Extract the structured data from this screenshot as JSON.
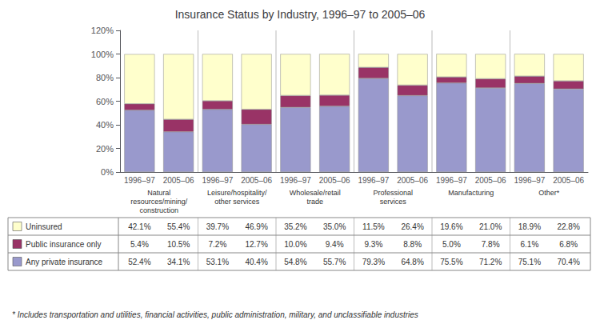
{
  "chart_data": {
    "type": "bar",
    "title": "Insurance Status by Industry, 1996–97 to 2005–06",
    "categories": [
      "1996–97",
      "2005–06",
      "1996–97",
      "2005–06",
      "1996–97",
      "2005–06",
      "1996–97",
      "2005–06",
      "1996–97",
      "2005–06",
      "1996–97",
      "2005–06"
    ],
    "groups": [
      "Natural\nresources/mining/\nconstruction",
      "Leisure/hospitality/\nother services",
      "Wholesale/retail\ntrade",
      "Professional\nservices",
      "Manufacturing",
      "Other*"
    ],
    "series": [
      {
        "name": "Any private insurance",
        "color": "#9999cc",
        "values": [
          52.4,
          34.1,
          53.1,
          40.4,
          54.8,
          55.7,
          79.3,
          64.8,
          75.5,
          71.2,
          75.1,
          70.4
        ],
        "value_labels": [
          "52.4%",
          "34.1%",
          "53.1%",
          "40.4%",
          "54.8%",
          "55.7%",
          "79.3%",
          "64.8%",
          "75.5%",
          "71.2%",
          "75.1%",
          "70.4%"
        ]
      },
      {
        "name": "Public insurance only",
        "color": "#993366",
        "values": [
          5.4,
          10.5,
          7.2,
          12.7,
          10.0,
          9.4,
          9.3,
          8.8,
          5.0,
          7.8,
          6.1,
          6.8
        ],
        "value_labels": [
          "5.4%",
          "10.5%",
          "7.2%",
          "12.7%",
          "10.0%",
          "9.4%",
          "9.3%",
          "8.8%",
          "5.0%",
          "7.8%",
          "6.1%",
          "6.8%"
        ]
      },
      {
        "name": "Uninsured",
        "color": "#ffffcc",
        "values": [
          42.1,
          55.4,
          39.7,
          46.9,
          35.2,
          35.0,
          11.5,
          26.4,
          19.6,
          21.0,
          18.9,
          22.8
        ],
        "value_labels": [
          "42.1%",
          "55.4%",
          "39.7%",
          "46.9%",
          "35.2%",
          "35.0%",
          "11.5%",
          "26.4%",
          "19.6%",
          "21.0%",
          "18.9%",
          "22.8%"
        ]
      }
    ],
    "stacked": true,
    "ylim": [
      0,
      120
    ],
    "yticks": [
      {
        "value": 0,
        "label": "0%"
      },
      {
        "value": 20,
        "label": "20%"
      },
      {
        "value": 40,
        "label": "40%"
      },
      {
        "value": 60,
        "label": "60%"
      },
      {
        "value": 80,
        "label": "80%"
      },
      {
        "value": 100,
        "label": "100%"
      },
      {
        "value": 120,
        "label": "120%"
      }
    ],
    "grid": false,
    "footnote": "* Includes transportation and utilities, financial activities, public administration, military, and unclassifiable industries"
  }
}
